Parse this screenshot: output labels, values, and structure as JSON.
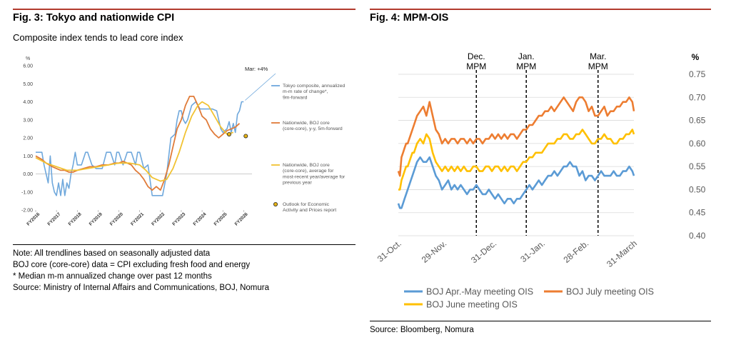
{
  "left": {
    "title": "Fig. 3: Tokyo and nationwide CPI",
    "subtitle": "Composite index tends to lead core index",
    "notes": [
      "Note: All trendlines based on seasonally adjusted data",
      "BOJ core (core-core) data = CPI excluding fresh food and energy",
      "* Median m-m annualized change over past 12 months",
      "Source: Ministry of Internal Affairs and Communications, BOJ, Nomura"
    ]
  },
  "right": {
    "title": "Fig. 4: MPM-OIS",
    "source": "Source: Bloomberg, Nomura"
  },
  "chart_data": [
    {
      "type": "line",
      "title": "Fig. 3: Tokyo and nationwide CPI",
      "subtitle": "Composite index tends to lead core index",
      "unit": "%",
      "ylim": [
        -2,
        6
      ],
      "y_ticks": [
        "-2.00",
        "-1.00",
        "0.00",
        "1.00",
        "2.00",
        "3.00",
        "4.00",
        "5.00",
        "6.00"
      ],
      "x_ticks": [
        "FY2016",
        "FY2017",
        "FY2018",
        "FY2019",
        "FY2020",
        "FY2021",
        "FY2022",
        "FY2023",
        "FY2024",
        "FY2025",
        "FY2026"
      ],
      "xlim": [
        2016,
        2026.4
      ],
      "annotation": "Mar: +4%",
      "series": [
        {
          "name": "Tokyo composite, annualized m-m rate of change*, 9m-forward",
          "color": "#6fa8dc",
          "x": [
            2016.0,
            2016.3,
            2016.4,
            2016.6,
            2016.7,
            2016.8,
            2016.9,
            2017.0,
            2017.1,
            2017.2,
            2017.3,
            2017.4,
            2017.5,
            2017.6,
            2017.7,
            2017.8,
            2017.9,
            2018.0,
            2018.2,
            2018.4,
            2018.5,
            2018.7,
            2018.9,
            2019.0,
            2019.2,
            2019.4,
            2019.6,
            2019.8,
            2019.9,
            2020.0,
            2020.2,
            2020.4,
            2020.6,
            2020.8,
            2020.9,
            2021.0,
            2021.2,
            2021.4,
            2021.6,
            2021.8,
            2021.9,
            2022.1,
            2022.3,
            2022.5,
            2022.7,
            2022.8,
            2022.9,
            2023.0,
            2023.1,
            2023.2,
            2023.3,
            2023.5,
            2023.7,
            2023.9,
            2024.1,
            2024.3,
            2024.5,
            2024.7,
            2024.9,
            2025.0,
            2025.2,
            2025.3,
            2025.4,
            2025.5,
            2025.6,
            2025.7,
            2025.8,
            2025.9,
            2026.0
          ],
          "values": [
            1.2,
            1.2,
            0.5,
            -0.5,
            1.0,
            -0.5,
            -1.0,
            -1.2,
            -0.5,
            -1.2,
            -0.3,
            -1.2,
            -0.5,
            -0.8,
            0.0,
            0.5,
            1.2,
            0.5,
            0.5,
            1.2,
            1.2,
            0.5,
            0.3,
            0.3,
            0.3,
            1.2,
            1.2,
            0.5,
            1.2,
            1.2,
            0.5,
            1.2,
            1.2,
            0.5,
            1.2,
            1.2,
            0.3,
            0.5,
            -1.2,
            -1.2,
            -1.2,
            -1.2,
            0.0,
            2.0,
            2.2,
            3.0,
            3.5,
            3.5,
            3.0,
            2.8,
            3.0,
            3.8,
            4.0,
            3.6,
            3.6,
            3.6,
            3.6,
            3.5,
            2.5,
            2.3,
            2.5,
            2.9,
            2.3,
            2.8,
            2.3,
            3.3,
            3.5,
            4.0,
            4.0
          ]
        },
        {
          "name": "Nationwide, BOJ core (core-core), y-y, 5m-forward",
          "color": "#e07b39",
          "x": [
            2016.0,
            2016.3,
            2016.5,
            2016.8,
            2017.0,
            2017.2,
            2017.4,
            2017.6,
            2017.8,
            2018.0,
            2018.3,
            2018.6,
            2018.9,
            2019.2,
            2019.5,
            2019.8,
            2020.0,
            2020.2,
            2020.4,
            2020.6,
            2020.8,
            2021.0,
            2021.2,
            2021.4,
            2021.6,
            2021.8,
            2022.0,
            2022.2,
            2022.4,
            2022.6,
            2022.8,
            2023.0,
            2023.2,
            2023.4,
            2023.6,
            2023.8,
            2024.0,
            2024.2,
            2024.4,
            2024.6,
            2024.8,
            2025.0,
            2025.2,
            2025.4,
            2025.6,
            2025.8
          ],
          "values": [
            1.0,
            0.8,
            0.6,
            0.4,
            0.3,
            0.2,
            0.2,
            0.1,
            0.1,
            0.2,
            0.3,
            0.4,
            0.4,
            0.5,
            0.5,
            0.6,
            0.6,
            0.7,
            0.6,
            0.5,
            0.2,
            0.0,
            -0.3,
            -0.7,
            -0.9,
            -0.7,
            -0.9,
            -0.3,
            0.5,
            1.5,
            2.5,
            3.0,
            3.8,
            4.3,
            4.3,
            3.8,
            3.2,
            3.0,
            2.5,
            2.2,
            2.0,
            2.2,
            2.4,
            2.5,
            2.6,
            2.8
          ]
        },
        {
          "name": "Nationwide, BOJ core (core-core), average for most-recent year/average for previous year",
          "color": "#f1c232",
          "x": [
            2016.0,
            2016.5,
            2017.0,
            2017.5,
            2018.0,
            2018.5,
            2019.0,
            2019.5,
            2020.0,
            2020.5,
            2021.0,
            2021.3,
            2021.6,
            2022.0,
            2022.3,
            2022.6,
            2022.9,
            2023.2,
            2023.5,
            2023.8,
            2024.0,
            2024.3,
            2024.6,
            2024.9,
            2025.2,
            2025.5
          ],
          "values": [
            0.9,
            0.6,
            0.4,
            0.2,
            0.2,
            0.3,
            0.4,
            0.5,
            0.6,
            0.6,
            0.5,
            0.2,
            -0.2,
            -0.4,
            -0.3,
            0.3,
            1.2,
            2.3,
            3.2,
            3.8,
            4.0,
            3.8,
            3.2,
            2.6,
            2.2,
            2.3
          ]
        },
        {
          "name": "Outlook for Economic Activity and Prices report",
          "color": "#e7b416",
          "x": [
            2025.3,
            2026.1
          ],
          "values": [
            2.2,
            2.1
          ]
        }
      ]
    },
    {
      "type": "line",
      "title": "Fig. 4: MPM-OIS",
      "unit": "%",
      "ylim": [
        0.4,
        0.75
      ],
      "y_ticks": [
        "0.40",
        "0.45",
        "0.50",
        "0.55",
        "0.60",
        "0.65",
        "0.70",
        "0.75"
      ],
      "x_ticks": [
        "31-Oct.",
        "29-Nov.",
        "31-Dec.",
        "31-Jan.",
        "28-Feb.",
        "31-March"
      ],
      "x_tick_days": [
        0,
        29,
        61,
        92,
        120,
        151
      ],
      "xlim": [
        0,
        151
      ],
      "meetings": [
        {
          "label": [
            "Dec.",
            "MPM"
          ],
          "day": 50
        },
        {
          "label": [
            "Jan.",
            "MPM"
          ],
          "day": 82
        },
        {
          "label": [
            "Mar.",
            "MPM"
          ],
          "day": 128
        }
      ],
      "series": [
        {
          "name": "BOJ Apr.-May meeting OIS",
          "color": "#5b9bd5",
          "x": [
            0,
            1,
            2,
            3,
            4,
            5,
            6,
            7,
            8,
            9,
            10,
            12,
            14,
            16,
            18,
            20,
            22,
            24,
            26,
            28,
            30,
            32,
            34,
            36,
            38,
            40,
            42,
            44,
            46,
            48,
            50,
            52,
            54,
            56,
            58,
            60,
            62,
            64,
            66,
            68,
            70,
            72,
            74,
            76,
            78,
            80,
            82,
            84,
            86,
            88,
            90,
            92,
            94,
            96,
            98,
            100,
            102,
            104,
            106,
            108,
            110,
            112,
            114,
            116,
            118,
            120,
            122,
            124,
            126,
            128,
            130,
            132,
            134,
            136,
            138,
            140,
            142,
            144,
            146,
            148,
            150,
            151
          ],
          "values": [
            0.47,
            0.46,
            0.46,
            0.47,
            0.48,
            0.49,
            0.5,
            0.51,
            0.52,
            0.53,
            0.54,
            0.56,
            0.57,
            0.56,
            0.56,
            0.57,
            0.55,
            0.53,
            0.52,
            0.5,
            0.51,
            0.52,
            0.5,
            0.51,
            0.5,
            0.51,
            0.5,
            0.49,
            0.5,
            0.5,
            0.51,
            0.5,
            0.49,
            0.49,
            0.5,
            0.49,
            0.48,
            0.49,
            0.48,
            0.47,
            0.48,
            0.48,
            0.47,
            0.48,
            0.48,
            0.49,
            0.5,
            0.51,
            0.5,
            0.51,
            0.52,
            0.51,
            0.52,
            0.53,
            0.53,
            0.54,
            0.53,
            0.54,
            0.55,
            0.55,
            0.56,
            0.55,
            0.55,
            0.53,
            0.54,
            0.52,
            0.53,
            0.53,
            0.52,
            0.53,
            0.54,
            0.53,
            0.53,
            0.53,
            0.54,
            0.53,
            0.53,
            0.54,
            0.54,
            0.55,
            0.54,
            0.53
          ]
        },
        {
          "name": "BOJ July meeting OIS",
          "color": "#ed7d31",
          "x": [
            0,
            1,
            2,
            3,
            4,
            5,
            6,
            7,
            8,
            9,
            10,
            12,
            14,
            16,
            18,
            20,
            22,
            24,
            26,
            28,
            30,
            32,
            34,
            36,
            38,
            40,
            42,
            44,
            46,
            48,
            50,
            52,
            54,
            56,
            58,
            60,
            62,
            64,
            66,
            68,
            70,
            72,
            74,
            76,
            78,
            80,
            82,
            84,
            86,
            88,
            90,
            92,
            94,
            96,
            98,
            100,
            102,
            104,
            106,
            108,
            110,
            112,
            114,
            116,
            118,
            120,
            122,
            124,
            126,
            128,
            130,
            132,
            134,
            136,
            138,
            140,
            142,
            144,
            146,
            148,
            150,
            151
          ],
          "values": [
            0.54,
            0.53,
            0.57,
            0.58,
            0.59,
            0.6,
            0.6,
            0.61,
            0.62,
            0.63,
            0.64,
            0.66,
            0.67,
            0.68,
            0.66,
            0.69,
            0.66,
            0.63,
            0.62,
            0.6,
            0.61,
            0.6,
            0.61,
            0.61,
            0.6,
            0.61,
            0.61,
            0.6,
            0.61,
            0.6,
            0.61,
            0.61,
            0.6,
            0.61,
            0.61,
            0.62,
            0.61,
            0.62,
            0.61,
            0.62,
            0.61,
            0.62,
            0.62,
            0.61,
            0.62,
            0.63,
            0.63,
            0.64,
            0.64,
            0.65,
            0.66,
            0.66,
            0.67,
            0.67,
            0.68,
            0.67,
            0.68,
            0.69,
            0.7,
            0.69,
            0.68,
            0.67,
            0.69,
            0.7,
            0.7,
            0.69,
            0.67,
            0.68,
            0.66,
            0.66,
            0.67,
            0.68,
            0.66,
            0.67,
            0.67,
            0.68,
            0.68,
            0.69,
            0.69,
            0.7,
            0.69,
            0.67
          ]
        },
        {
          "name": "BOJ June meeting OIS",
          "color": "#ffc000",
          "x": [
            0,
            1,
            2,
            3,
            4,
            5,
            6,
            7,
            8,
            9,
            10,
            12,
            14,
            16,
            18,
            20,
            22,
            24,
            26,
            28,
            30,
            32,
            34,
            36,
            38,
            40,
            42,
            44,
            46,
            48,
            50,
            52,
            54,
            56,
            58,
            60,
            62,
            64,
            66,
            68,
            70,
            72,
            74,
            76,
            78,
            80,
            82,
            84,
            86,
            88,
            90,
            92,
            94,
            96,
            98,
            100,
            102,
            104,
            106,
            108,
            110,
            112,
            114,
            116,
            118,
            120,
            122,
            124,
            126,
            128,
            130,
            132,
            134,
            136,
            138,
            140,
            142,
            144,
            146,
            148,
            150,
            151
          ],
          "values": [
            0.5,
            0.5,
            0.52,
            0.53,
            0.54,
            0.55,
            0.55,
            0.56,
            0.57,
            0.58,
            0.58,
            0.6,
            0.61,
            0.6,
            0.62,
            0.61,
            0.58,
            0.56,
            0.55,
            0.54,
            0.55,
            0.54,
            0.55,
            0.54,
            0.55,
            0.54,
            0.55,
            0.54,
            0.54,
            0.55,
            0.55,
            0.54,
            0.54,
            0.55,
            0.55,
            0.54,
            0.55,
            0.55,
            0.54,
            0.55,
            0.54,
            0.55,
            0.55,
            0.54,
            0.55,
            0.56,
            0.56,
            0.57,
            0.57,
            0.58,
            0.58,
            0.58,
            0.59,
            0.6,
            0.6,
            0.6,
            0.61,
            0.61,
            0.62,
            0.62,
            0.61,
            0.61,
            0.62,
            0.62,
            0.63,
            0.62,
            0.61,
            0.6,
            0.6,
            0.61,
            0.61,
            0.62,
            0.61,
            0.61,
            0.6,
            0.6,
            0.61,
            0.61,
            0.62,
            0.62,
            0.63,
            0.62
          ]
        }
      ]
    }
  ]
}
